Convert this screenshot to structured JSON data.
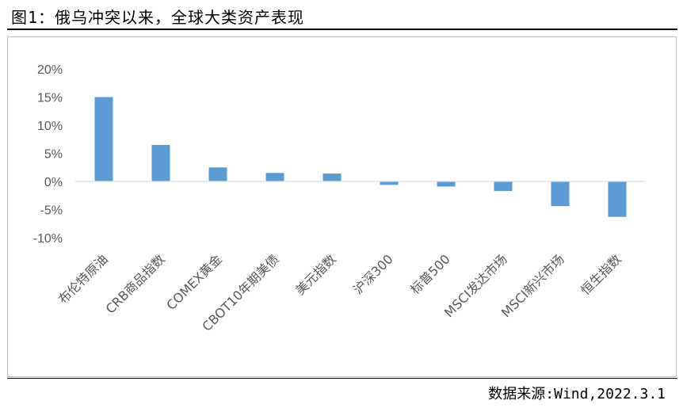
{
  "figure": {
    "title": "图1：俄乌冲突以来，全球大类资产表现",
    "source": "数据来源:Wind,2022.3.1"
  },
  "chart_data": {
    "type": "bar",
    "title": "",
    "xlabel": "",
    "ylabel": "",
    "categories": [
      "布伦特原油",
      "CRB商品指数",
      "COMEX黄金",
      "CBOT10年期美债",
      "美元指数",
      "沪深300",
      "标普500",
      "MSCI发达市场",
      "MSCI新兴市场",
      "恒生指数"
    ],
    "values": [
      15.0,
      6.5,
      2.5,
      1.5,
      1.4,
      -0.6,
      -0.9,
      -1.7,
      -4.4,
      -6.3
    ],
    "unit": "%",
    "ylim": [
      -10,
      20
    ],
    "yticks": [
      -10,
      -5,
      0,
      5,
      10,
      15,
      20
    ],
    "ytick_labels": [
      "-10%",
      "-5%",
      "0%",
      "5%",
      "10%",
      "15%",
      "20%"
    ],
    "grid": false,
    "legend": "none",
    "bar_color": "#5b9bd5",
    "axis_color": "#d9d9d9"
  }
}
